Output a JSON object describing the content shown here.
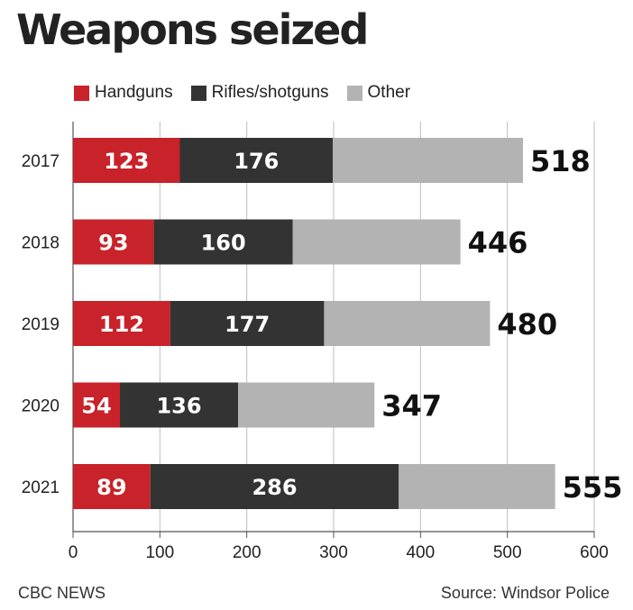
{
  "title": "Weapons seized",
  "footer": {
    "left": "CBC NEWS",
    "right": "Source:  Windsor Police"
  },
  "colors": {
    "handguns": "#c8222a",
    "rifles": "#333333",
    "other": "#b3b3b3"
  },
  "chart_data": {
    "type": "bar",
    "orientation": "horizontal",
    "stacked": true,
    "title": "Weapons seized",
    "xlabel": "",
    "ylabel": "",
    "xlim": [
      0,
      600
    ],
    "xticks": [
      0,
      100,
      200,
      300,
      400,
      500,
      600
    ],
    "grid": true,
    "legend_position": "top-left",
    "categories": [
      "2017",
      "2018",
      "2019",
      "2020",
      "2021"
    ],
    "series": [
      {
        "name": "Handguns",
        "color": "#c8222a",
        "values": [
          123,
          93,
          112,
          54,
          89
        ]
      },
      {
        "name": "Rifles/shotguns",
        "color": "#333333",
        "values": [
          176,
          160,
          177,
          136,
          286
        ]
      },
      {
        "name": "Other",
        "color": "#b3b3b3",
        "values": [
          219,
          193,
          191,
          157,
          180
        ]
      }
    ],
    "totals": [
      518,
      446,
      480,
      347,
      555
    ]
  }
}
